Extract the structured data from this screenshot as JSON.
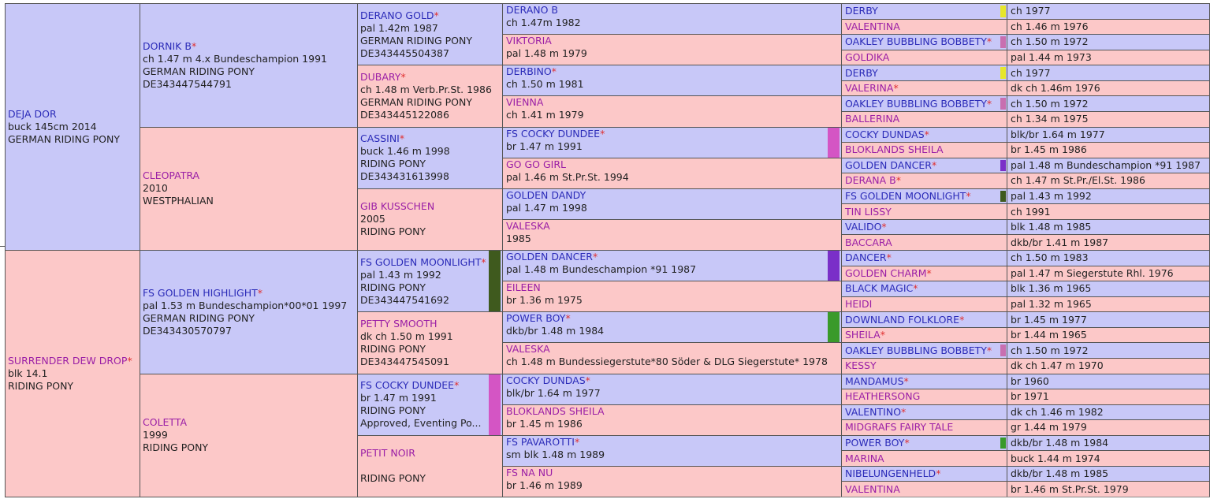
{
  "pedigree": {
    "g1": [
      {
        "name": "DEJA DOR",
        "star": false,
        "lines": [
          "buck 145cm 2014",
          "GERMAN RIDING PONY"
        ]
      },
      {
        "name": "SURRENDER DEW DROP",
        "star": true,
        "lines": [
          "blk 14.1",
          "RIDING PONY"
        ]
      }
    ],
    "g2": [
      {
        "name": "DORNIK B",
        "star": true,
        "lines": [
          "ch 1.47 m 4.x Bundeschampion 1991",
          "GERMAN RIDING PONY",
          "DE343447544791"
        ]
      },
      {
        "name": "CLEOPATRA",
        "star": false,
        "lines": [
          "2010",
          "WESTPHALIAN"
        ]
      },
      {
        "name": "FS GOLDEN HIGHLIGHT",
        "star": true,
        "lines": [
          "pal 1.53 m Bundeschampion*00*01 1997",
          "GERMAN RIDING PONY",
          "DE343430570797"
        ]
      },
      {
        "name": "COLETTA",
        "star": false,
        "lines": [
          "1999",
          "RIDING PONY"
        ]
      }
    ],
    "g3": [
      {
        "name": "DERANO GOLD",
        "star": true,
        "lines": [
          "pal 1.42m 1987",
          "GERMAN RIDING PONY",
          "DE343445504387"
        ]
      },
      {
        "name": "DUBARY",
        "star": true,
        "lines": [
          "ch 1.48 m Verb.Pr.St. 1986",
          "GERMAN RIDING PONY",
          "DE343445122086"
        ]
      },
      {
        "name": "CASSINI",
        "star": true,
        "lines": [
          "buck 1.46 m 1998",
          "RIDING PONY",
          "DE343431613998"
        ]
      },
      {
        "name": "GIB KUSSCHEN",
        "star": false,
        "lines": [
          "2005",
          "RIDING PONY"
        ]
      },
      {
        "name": "FS GOLDEN MOONLIGHT",
        "star": true,
        "lines": [
          "pal 1.43 m 1992",
          "RIDING PONY",
          "DE343447541692"
        ],
        "strip": "#3f5a1e"
      },
      {
        "name": "PETTY SMOOTH",
        "star": false,
        "lines": [
          "dk ch 1.50 m 1991",
          "RIDING PONY",
          "DE343447545091"
        ]
      },
      {
        "name": "FS COCKY DUNDEE",
        "star": true,
        "lines": [
          "br 1.47 m 1991",
          "RIDING PONY",
          "Approved, Eventing Po..."
        ],
        "strip": "#d455c4"
      },
      {
        "name": "PETIT NOIR",
        "star": false,
        "lines": [
          "",
          "RIDING PONY"
        ]
      }
    ],
    "g4": [
      {
        "name": "DERANO B",
        "star": false,
        "detail": "ch 1.47m 1982"
      },
      {
        "name": "VIKTORIA",
        "star": false,
        "detail": "pal 1.48 m 1979"
      },
      {
        "name": "DERBINO",
        "star": true,
        "detail": "ch 1.50 m 1981"
      },
      {
        "name": "VIENNA",
        "star": false,
        "detail": "ch 1.41 m 1979"
      },
      {
        "name": "FS COCKY DUNDEE",
        "star": true,
        "detail": "br 1.47 m 1991",
        "strip": "#d455c4"
      },
      {
        "name": "GO GO GIRL",
        "star": false,
        "detail": "pal 1.46 m St.Pr.St. 1994"
      },
      {
        "name": "GOLDEN DANDY",
        "star": false,
        "detail": "pal 1.47 m 1998"
      },
      {
        "name": "VALESKA",
        "star": false,
        "detail": "1985"
      },
      {
        "name": "GOLDEN DANCER",
        "star": true,
        "detail": "pal 1.48 m Bundeschampion *91 1987",
        "strip": "#7a2fc8"
      },
      {
        "name": "EILEEN",
        "star": false,
        "detail": "br 1.36 m 1975"
      },
      {
        "name": "POWER BOY",
        "star": true,
        "detail": "dkb/br 1.48 m 1984",
        "strip": "#3a9a2a"
      },
      {
        "name": "VALESKA",
        "star": false,
        "detail": "ch 1.48 m Bundessiegerstute*80 Söder & DLG Siegerstute* 1978"
      },
      {
        "name": "COCKY DUNDAS",
        "star": true,
        "detail": "blk/br 1.64 m 1977"
      },
      {
        "name": "BLOKLANDS SHEILA",
        "star": false,
        "detail": "br 1.45 m 1986"
      },
      {
        "name": "FS PAVAROTTI",
        "star": true,
        "detail": "sm blk 1.48 m 1989"
      },
      {
        "name": "FS NA NU",
        "star": false,
        "detail": "br 1.46 m 1989"
      }
    ],
    "g5": [
      {
        "name": "DERBY",
        "star": false,
        "strip": "#e6e62a"
      },
      {
        "name": "VALENTINA",
        "star": false
      },
      {
        "name": "OAKLEY BUBBLING BOBBETY",
        "star": true,
        "strip": "#c86fb0"
      },
      {
        "name": "GOLDIKA",
        "star": false
      },
      {
        "name": "DERBY",
        "star": false,
        "strip": "#e6e62a"
      },
      {
        "name": "VALERINA",
        "star": true
      },
      {
        "name": "OAKLEY BUBBLING BOBBETY",
        "star": true,
        "strip": "#c86fb0"
      },
      {
        "name": "BALLERINA",
        "star": false
      },
      {
        "name": "COCKY DUNDAS",
        "star": true
      },
      {
        "name": "BLOKLANDS SHEILA",
        "star": false
      },
      {
        "name": "GOLDEN DANCER",
        "star": true,
        "strip": "#7a2fc8"
      },
      {
        "name": "DERANA B",
        "star": true
      },
      {
        "name": "FS GOLDEN MOONLIGHT",
        "star": true,
        "strip": "#3f5a1e"
      },
      {
        "name": "TIN LISSY",
        "star": false
      },
      {
        "name": "VALIDO",
        "star": true
      },
      {
        "name": "BACCARA",
        "star": false
      },
      {
        "name": "DANCER",
        "star": true
      },
      {
        "name": "GOLDEN CHARM",
        "star": true
      },
      {
        "name": "BLACK MAGIC",
        "star": true
      },
      {
        "name": "HEIDI",
        "star": false
      },
      {
        "name": "DOWNLAND FOLKLORE",
        "star": true
      },
      {
        "name": "SHEILA",
        "star": true
      },
      {
        "name": "OAKLEY BUBBLING BOBBETY",
        "star": true,
        "strip": "#c86fb0"
      },
      {
        "name": "KESSY",
        "star": false
      },
      {
        "name": "MANDAMUS",
        "star": true
      },
      {
        "name": "HEATHERSONG",
        "star": false
      },
      {
        "name": "VALENTINO",
        "star": true
      },
      {
        "name": "MIDGRAFS FAIRY TALE",
        "star": false
      },
      {
        "name": "POWER BOY",
        "star": true,
        "strip": "#3a9a2a"
      },
      {
        "name": "MARINA",
        "star": false
      },
      {
        "name": "NIBELUNGENHELD",
        "star": true
      },
      {
        "name": "VALENTINA",
        "star": false
      }
    ],
    "g6": [
      "ch 1977",
      "ch 1.46 m 1976",
      "ch 1.50 m 1972",
      "pal 1.44 m 1973",
      "ch 1977",
      "dk ch 1.46m 1976",
      "ch 1.50 m 1972",
      "ch 1.34 m 1975",
      "blk/br 1.64 m 1977",
      "br 1.45 m 1986",
      "pal 1.48 m Bundeschampion *91 1987",
      "ch 1.47 m St.Pr./El.St. 1986",
      "pal 1.43 m 1992",
      "ch 1991",
      "blk 1.48 m 1985",
      "dkb/br 1.41 m 1987",
      "ch 1.50 m 1983",
      "pal 1.47 m Siegerstute Rhl. 1976",
      "blk 1.36 m 1965",
      "pal 1.32 m 1965",
      "br 1.45 m 1977",
      "br 1.44 m 1965",
      "ch 1.50 m 1972",
      "dk ch 1.47 m 1970",
      "br 1960",
      "br 1971",
      "dk ch 1.46 m 1982",
      "gr 1.44 m 1979",
      "dkb/br 1.48 m 1984",
      "buck 1.44 m 1974",
      "dkb/br 1.48 m 1985",
      "br 1.46 m St.Pr.St. 1979"
    ],
    "star_glyph": "*"
  }
}
